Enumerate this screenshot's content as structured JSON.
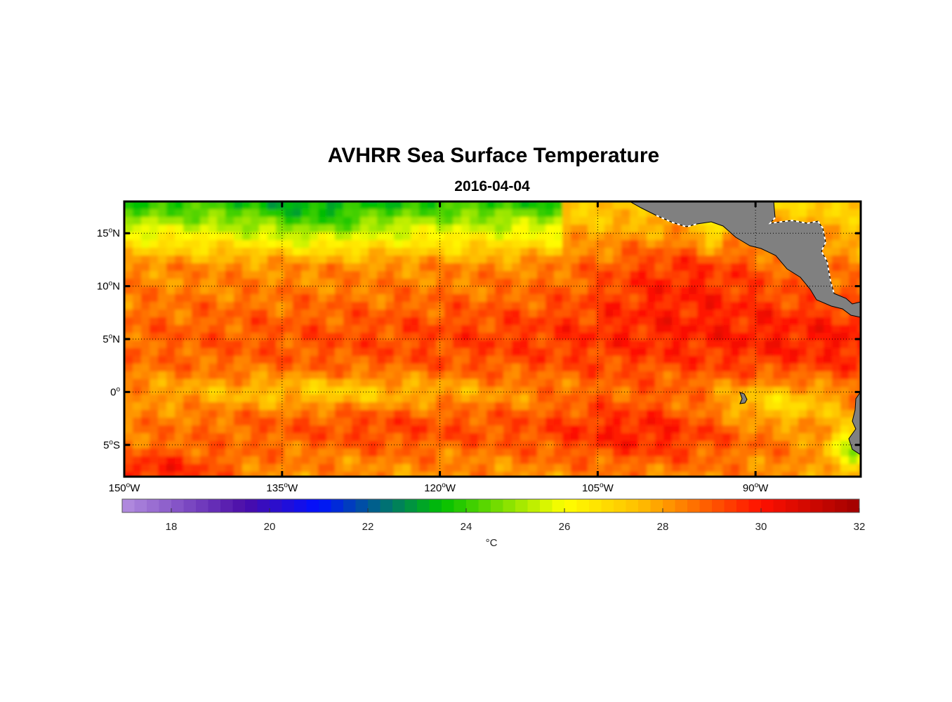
{
  "title": "AVHRR Sea Surface Temperature",
  "subtitle": "2016-04-04",
  "map": {
    "lon_range_degE": [
      -150,
      -80
    ],
    "lat_range_degN": [
      -8,
      18
    ],
    "gridlines": "dotted",
    "land_color": "#808080",
    "lon_ticks": [
      {
        "deg": "150",
        "hemi": "W",
        "lon": -150
      },
      {
        "deg": "135",
        "hemi": "W",
        "lon": -135
      },
      {
        "deg": "120",
        "hemi": "W",
        "lon": -120
      },
      {
        "deg": "105",
        "hemi": "W",
        "lon": -105
      },
      {
        "deg": "90",
        "hemi": "W",
        "lon": -90
      }
    ],
    "lat_ticks": [
      {
        "deg": "15",
        "hemi": "N",
        "lat": 15
      },
      {
        "deg": "10",
        "hemi": "N",
        "lat": 10
      },
      {
        "deg": "5",
        "hemi": "N",
        "lat": 5
      },
      {
        "deg": "0",
        "hemi": "",
        "lat": 0
      },
      {
        "deg": "5",
        "hemi": "S",
        "lat": -5
      }
    ]
  },
  "colorbar": {
    "min": 17,
    "max": 32,
    "ticks": [
      "18",
      "20",
      "22",
      "24",
      "26",
      "28",
      "30",
      "32"
    ],
    "unit": "°C",
    "colors": [
      "#b48ee0",
      "#4b0ca8",
      "#0010ff",
      "#00c000",
      "#ffff00",
      "#ffc000",
      "#ff1000",
      "#a00000"
    ],
    "color_stops_degC": [
      17,
      19.5,
      21,
      23.5,
      26,
      27.5,
      30,
      32
    ]
  }
}
